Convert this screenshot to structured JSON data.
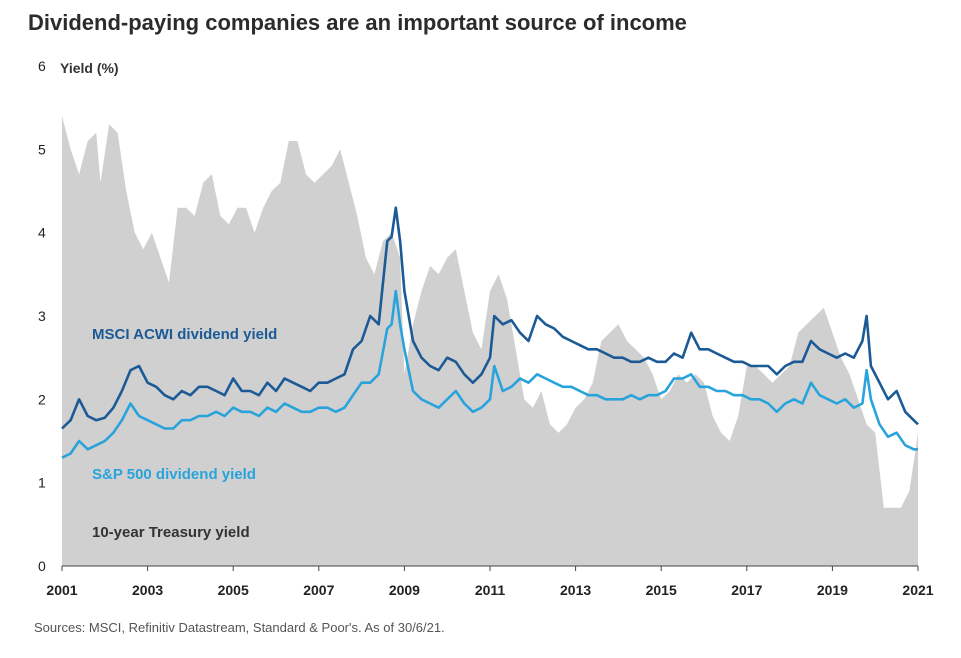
{
  "title": "Dividend-paying companies are an important source of income",
  "source": "Sources: MSCI, Refinitiv Datastream, Standard & Poor's. As of 30/6/21.",
  "chart_data": {
    "type": "area+line",
    "title": "Dividend-paying companies are an important source of income",
    "ylabel": "Yield (%)",
    "xlabel": "",
    "xlim": [
      2001,
      2021
    ],
    "ylim": [
      0,
      6
    ],
    "yticks": [
      "0",
      "1",
      "2",
      "3",
      "4",
      "5",
      "6"
    ],
    "xticks": [
      "2001",
      "2003",
      "2005",
      "2007",
      "2009",
      "2011",
      "2013",
      "2015",
      "2017",
      "2019",
      "2021"
    ],
    "grid": false,
    "series": [
      {
        "name": "10-year Treasury yield",
        "style": "area",
        "color": "#d0d0d0",
        "label_color": "#333333",
        "x": [
          2001.0,
          2001.2,
          2001.4,
          2001.6,
          2001.8,
          2001.9,
          2002.1,
          2002.3,
          2002.5,
          2002.7,
          2002.9,
          2003.1,
          2003.3,
          2003.5,
          2003.7,
          2003.9,
          2004.1,
          2004.3,
          2004.5,
          2004.7,
          2004.9,
          2005.1,
          2005.3,
          2005.5,
          2005.7,
          2005.9,
          2006.1,
          2006.3,
          2006.5,
          2006.7,
          2006.9,
          2007.1,
          2007.3,
          2007.5,
          2007.7,
          2007.9,
          2008.1,
          2008.3,
          2008.5,
          2008.7,
          2008.9,
          2009.0,
          2009.2,
          2009.4,
          2009.6,
          2009.8,
          2010.0,
          2010.2,
          2010.4,
          2010.6,
          2010.8,
          2011.0,
          2011.2,
          2011.4,
          2011.6,
          2011.8,
          2012.0,
          2012.2,
          2012.4,
          2012.6,
          2012.8,
          2013.0,
          2013.2,
          2013.4,
          2013.6,
          2013.8,
          2014.0,
          2014.2,
          2014.4,
          2014.6,
          2014.8,
          2015.0,
          2015.2,
          2015.4,
          2015.6,
          2015.8,
          2016.0,
          2016.2,
          2016.4,
          2016.6,
          2016.8,
          2017.0,
          2017.2,
          2017.4,
          2017.6,
          2017.8,
          2018.0,
          2018.2,
          2018.4,
          2018.6,
          2018.8,
          2019.0,
          2019.2,
          2019.4,
          2019.6,
          2019.8,
          2020.0,
          2020.2,
          2020.4,
          2020.6,
          2020.8,
          2021.0
        ],
        "values": [
          5.4,
          5.0,
          4.7,
          5.1,
          5.2,
          4.6,
          5.3,
          5.2,
          4.5,
          4.0,
          3.8,
          4.0,
          3.7,
          3.4,
          4.3,
          4.3,
          4.2,
          4.6,
          4.7,
          4.2,
          4.1,
          4.3,
          4.3,
          4.0,
          4.3,
          4.5,
          4.6,
          5.1,
          5.1,
          4.7,
          4.6,
          4.7,
          4.8,
          5.0,
          4.6,
          4.2,
          3.7,
          3.5,
          3.9,
          4.0,
          3.7,
          2.3,
          2.9,
          3.3,
          3.6,
          3.5,
          3.7,
          3.8,
          3.3,
          2.8,
          2.6,
          3.3,
          3.5,
          3.2,
          2.6,
          2.0,
          1.9,
          2.1,
          1.7,
          1.6,
          1.7,
          1.9,
          2.0,
          2.2,
          2.7,
          2.8,
          2.9,
          2.7,
          2.6,
          2.5,
          2.3,
          2.0,
          2.1,
          2.3,
          2.2,
          2.3,
          2.2,
          1.8,
          1.6,
          1.5,
          1.8,
          2.4,
          2.4,
          2.3,
          2.2,
          2.3,
          2.4,
          2.8,
          2.9,
          3.0,
          3.1,
          2.8,
          2.5,
          2.3,
          2.0,
          1.7,
          1.6,
          0.7,
          0.7,
          0.7,
          0.9,
          1.6
        ]
      },
      {
        "name": "MSCI ACWI dividend yield",
        "style": "line",
        "color": "#1c5a96",
        "x": [
          2001.0,
          2001.2,
          2001.4,
          2001.6,
          2001.8,
          2002.0,
          2002.2,
          2002.4,
          2002.6,
          2002.8,
          2003.0,
          2003.2,
          2003.4,
          2003.6,
          2003.8,
          2004.0,
          2004.2,
          2004.4,
          2004.6,
          2004.8,
          2005.0,
          2005.2,
          2005.4,
          2005.6,
          2005.8,
          2006.0,
          2006.2,
          2006.4,
          2006.6,
          2006.8,
          2007.0,
          2007.2,
          2007.4,
          2007.6,
          2007.8,
          2008.0,
          2008.2,
          2008.4,
          2008.6,
          2008.7,
          2008.8,
          2008.9,
          2009.0,
          2009.2,
          2009.4,
          2009.6,
          2009.8,
          2010.0,
          2010.2,
          2010.4,
          2010.6,
          2010.8,
          2011.0,
          2011.1,
          2011.3,
          2011.5,
          2011.7,
          2011.9,
          2012.1,
          2012.3,
          2012.5,
          2012.7,
          2012.9,
          2013.1,
          2013.3,
          2013.5,
          2013.7,
          2013.9,
          2014.1,
          2014.3,
          2014.5,
          2014.7,
          2014.9,
          2015.1,
          2015.3,
          2015.5,
          2015.7,
          2015.9,
          2016.1,
          2016.3,
          2016.5,
          2016.7,
          2016.9,
          2017.1,
          2017.3,
          2017.5,
          2017.7,
          2017.9,
          2018.1,
          2018.3,
          2018.5,
          2018.7,
          2018.9,
          2019.1,
          2019.3,
          2019.5,
          2019.7,
          2019.8,
          2019.9,
          2020.1,
          2020.3,
          2020.5,
          2020.7,
          2020.9,
          2021.0
        ],
        "values": [
          1.65,
          1.75,
          2.0,
          1.8,
          1.75,
          1.78,
          1.9,
          2.1,
          2.35,
          2.4,
          2.2,
          2.15,
          2.05,
          2.0,
          2.1,
          2.05,
          2.15,
          2.15,
          2.1,
          2.05,
          2.25,
          2.1,
          2.1,
          2.05,
          2.2,
          2.1,
          2.25,
          2.2,
          2.15,
          2.1,
          2.2,
          2.2,
          2.25,
          2.3,
          2.6,
          2.7,
          3.0,
          2.9,
          3.9,
          3.95,
          4.3,
          3.9,
          3.3,
          2.7,
          2.5,
          2.4,
          2.35,
          2.5,
          2.45,
          2.3,
          2.2,
          2.3,
          2.5,
          3.0,
          2.9,
          2.95,
          2.8,
          2.7,
          3.0,
          2.9,
          2.85,
          2.75,
          2.7,
          2.65,
          2.6,
          2.6,
          2.55,
          2.5,
          2.5,
          2.45,
          2.45,
          2.5,
          2.45,
          2.45,
          2.55,
          2.5,
          2.8,
          2.6,
          2.6,
          2.55,
          2.5,
          2.45,
          2.45,
          2.4,
          2.4,
          2.4,
          2.3,
          2.4,
          2.45,
          2.45,
          2.7,
          2.6,
          2.55,
          2.5,
          2.55,
          2.5,
          2.7,
          3.0,
          2.4,
          2.2,
          2.0,
          2.1,
          1.85,
          1.75,
          1.7
        ]
      },
      {
        "name": "S&P 500 dividend yield",
        "style": "line",
        "color": "#29a3dc",
        "x": [
          2001.0,
          2001.2,
          2001.4,
          2001.6,
          2001.8,
          2002.0,
          2002.2,
          2002.4,
          2002.6,
          2002.8,
          2003.0,
          2003.2,
          2003.4,
          2003.6,
          2003.8,
          2004.0,
          2004.2,
          2004.4,
          2004.6,
          2004.8,
          2005.0,
          2005.2,
          2005.4,
          2005.6,
          2005.8,
          2006.0,
          2006.2,
          2006.4,
          2006.6,
          2006.8,
          2007.0,
          2007.2,
          2007.4,
          2007.6,
          2007.8,
          2008.0,
          2008.2,
          2008.4,
          2008.6,
          2008.7,
          2008.8,
          2008.9,
          2009.0,
          2009.2,
          2009.4,
          2009.6,
          2009.8,
          2010.0,
          2010.2,
          2010.4,
          2010.6,
          2010.8,
          2011.0,
          2011.1,
          2011.3,
          2011.5,
          2011.7,
          2011.9,
          2012.1,
          2012.3,
          2012.5,
          2012.7,
          2012.9,
          2013.1,
          2013.3,
          2013.5,
          2013.7,
          2013.9,
          2014.1,
          2014.3,
          2014.5,
          2014.7,
          2014.9,
          2015.1,
          2015.3,
          2015.5,
          2015.7,
          2015.9,
          2016.1,
          2016.3,
          2016.5,
          2016.7,
          2016.9,
          2017.1,
          2017.3,
          2017.5,
          2017.7,
          2017.9,
          2018.1,
          2018.3,
          2018.5,
          2018.7,
          2018.9,
          2019.1,
          2019.3,
          2019.5,
          2019.7,
          2019.8,
          2019.9,
          2020.1,
          2020.3,
          2020.5,
          2020.7,
          2020.9,
          2021.0
        ],
        "values": [
          1.3,
          1.35,
          1.5,
          1.4,
          1.45,
          1.5,
          1.6,
          1.75,
          1.95,
          1.8,
          1.75,
          1.7,
          1.65,
          1.65,
          1.75,
          1.75,
          1.8,
          1.8,
          1.85,
          1.8,
          1.9,
          1.85,
          1.85,
          1.8,
          1.9,
          1.85,
          1.95,
          1.9,
          1.85,
          1.85,
          1.9,
          1.9,
          1.85,
          1.9,
          2.05,
          2.2,
          2.2,
          2.3,
          2.85,
          2.9,
          3.3,
          2.9,
          2.6,
          2.1,
          2.0,
          1.95,
          1.9,
          2.0,
          2.1,
          1.95,
          1.85,
          1.9,
          2.0,
          2.4,
          2.1,
          2.15,
          2.25,
          2.2,
          2.3,
          2.25,
          2.2,
          2.15,
          2.15,
          2.1,
          2.05,
          2.05,
          2.0,
          2.0,
          2.0,
          2.05,
          2.0,
          2.05,
          2.05,
          2.1,
          2.25,
          2.25,
          2.3,
          2.15,
          2.15,
          2.1,
          2.1,
          2.05,
          2.05,
          2.0,
          2.0,
          1.95,
          1.85,
          1.95,
          2.0,
          1.95,
          2.2,
          2.05,
          2.0,
          1.95,
          2.0,
          1.9,
          1.95,
          2.35,
          2.0,
          1.7,
          1.55,
          1.6,
          1.45,
          1.4,
          1.4
        ]
      }
    ],
    "annotations": [
      {
        "text": "MSCI ACWI dividend yield",
        "series": "MSCI ACWI dividend yield"
      },
      {
        "text": "S&P 500 dividend yield",
        "series": "S&P 500 dividend yield"
      },
      {
        "text": "10-year Treasury yield",
        "series": "10-year Treasury yield"
      }
    ]
  }
}
